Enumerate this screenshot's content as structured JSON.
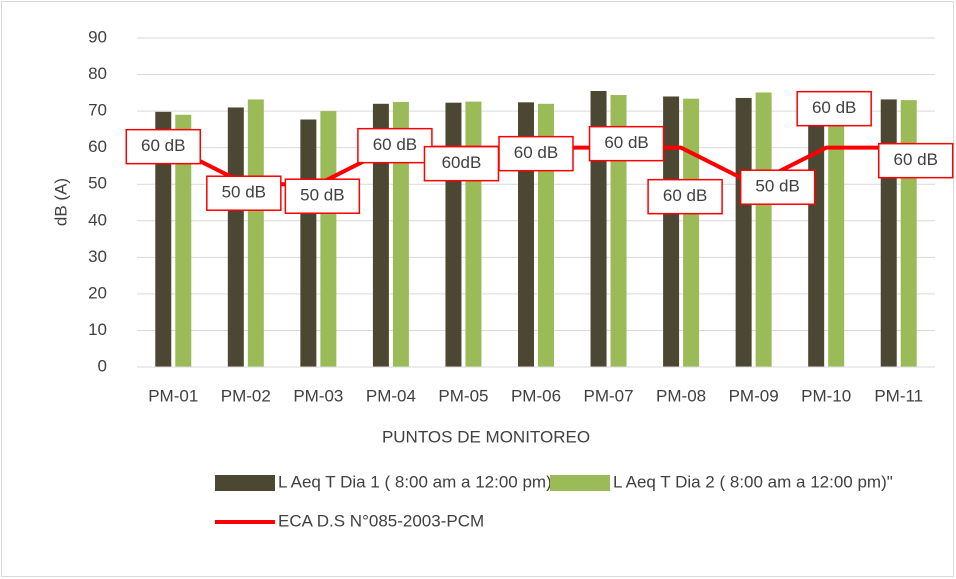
{
  "chart_data": {
    "type": "bar",
    "y_label": "dB (A)",
    "x_label": "PUNTOS DE MONITOREO",
    "categories": [
      "PM-01",
      "PM-02",
      "PM-03",
      "PM-04",
      "PM-05",
      "PM-06",
      "PM-07",
      "PM-08",
      "PM-09",
      "PM-10",
      "PM-11"
    ],
    "series": [
      {
        "name": "L Aeq T Dia 1 ( 8:00 am a 12:00 pm)",
        "type": "bar",
        "color": "#4b4733",
        "values": [
          69.8,
          71,
          67.7,
          72,
          72.3,
          72.4,
          75.5,
          74,
          73.6,
          68,
          73.2
        ]
      },
      {
        "name": "L Aeq T Dia 2 ( 8:00 am a 12:00 pm)\"",
        "type": "bar",
        "color": "#9bbb59",
        "values": [
          69,
          73.2,
          70,
          72.5,
          72.6,
          72,
          74.4,
          73.4,
          75.1,
          66,
          73
        ]
      },
      {
        "name": "ECA D.S N°085-2003-PCM",
        "type": "line",
        "color": "#ff0000",
        "values": [
          60,
          50,
          50,
          60,
          60,
          60,
          60,
          60,
          50,
          60,
          60
        ],
        "value_labels": [
          "60 dB",
          "50 dB",
          "50 dB",
          "60 dB",
          "60dB",
          "60 dB",
          "60 dB",
          "60 dB",
          "50 dB",
          "60 dB",
          "60 dB"
        ]
      }
    ],
    "ylim": [
      0,
      90
    ],
    "yticks": [
      0,
      10,
      20,
      30,
      40,
      50,
      60,
      70,
      80,
      90
    ],
    "grid": true
  }
}
